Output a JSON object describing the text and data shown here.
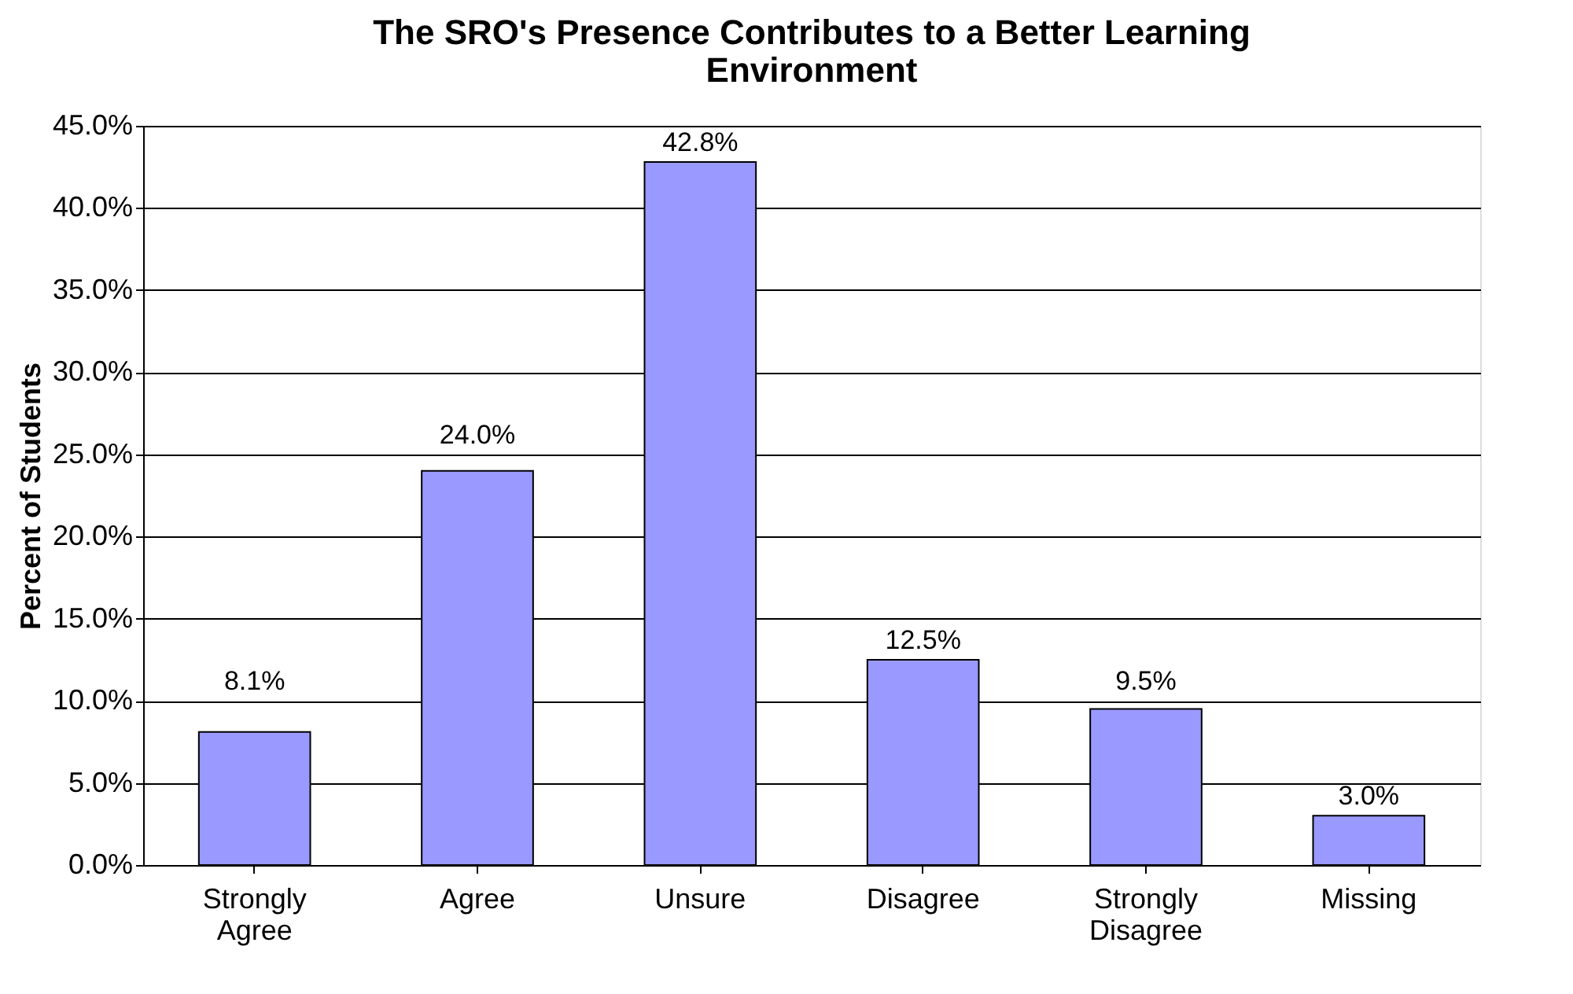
{
  "chart_data": {
    "type": "bar",
    "title": "The SRO's Presence Contributes to a Better Learning Environment",
    "ylabel": "Percent of Students",
    "categories": [
      "Strongly Agree",
      "Agree",
      "Unsure",
      "Disagree",
      "Strongly Disagree",
      "Missing"
    ],
    "values": [
      8.1,
      24.0,
      42.8,
      12.5,
      9.5,
      3.0
    ],
    "value_labels": [
      "8.1%",
      "24.0%",
      "42.8%",
      "12.5%",
      "9.5%",
      "3.0%"
    ],
    "color": "#9999ff",
    "ylim": [
      0,
      45
    ],
    "yticks": [
      {
        "value": 0,
        "label": "0.0%"
      },
      {
        "value": 5,
        "label": "5.0%"
      },
      {
        "value": 10,
        "label": "10.0%"
      },
      {
        "value": 15,
        "label": "15.0%"
      },
      {
        "value": 20,
        "label": "20.0%"
      },
      {
        "value": 25,
        "label": "25.0%"
      },
      {
        "value": 30,
        "label": "30.0%"
      },
      {
        "value": 35,
        "label": "35.0%"
      },
      {
        "value": 40,
        "label": "40.0%"
      },
      {
        "value": 45,
        "label": "45.0%"
      }
    ],
    "grid": "y"
  }
}
